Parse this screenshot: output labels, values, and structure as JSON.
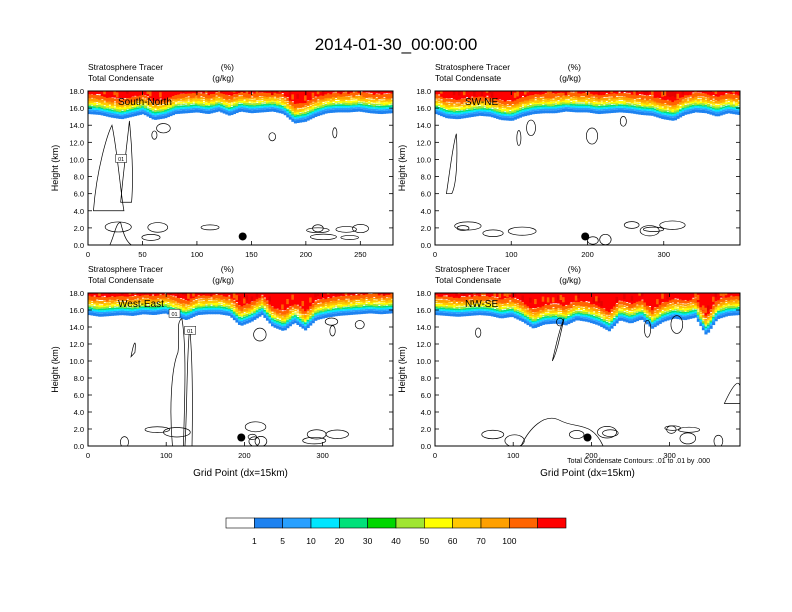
{
  "title": "2014-01-30_00:00:00",
  "colors": {
    "contour_line": "#000000",
    "levels": [
      "#ffffff",
      "#1e82f0",
      "#28a0ff",
      "#00e6ff",
      "#00e17a",
      "#00d700",
      "#a0e632",
      "#ffff00",
      "#ffc800",
      "#ffa000",
      "#ff6400",
      "#ff0000"
    ]
  },
  "chart_data": [
    {
      "type": "heatmap",
      "panel_label": "South-North",
      "left_title_1": "Stratosphere Tracer",
      "right_title_1": "(%)",
      "left_title_2": "Total Condensate",
      "right_title_2": "(g/kg)",
      "ylabel": "Height (km)",
      "xlabel": "",
      "xlim": [
        0,
        280
      ],
      "xticks": [
        "0",
        "50",
        "100",
        "150",
        "200",
        "250"
      ],
      "ylim": [
        0,
        18
      ],
      "yticks": [
        "0.0",
        "2.0",
        "4.0",
        "6.0",
        "8.0",
        "10.0",
        "12.0",
        "14.0",
        "16.0",
        "18.0"
      ],
      "tracer_top_height": [
        15.3,
        15.2,
        14.9,
        14.7,
        15.0,
        15.3,
        14.6,
        14.8,
        15.3,
        15.4,
        15.5,
        15.3,
        15.6,
        15.1,
        15.6,
        15.4,
        15.5,
        15.6,
        15.3,
        14.2,
        14.4,
        15.0,
        15.4,
        15.5,
        15.5,
        15.6,
        15.4,
        15.3,
        15.4
      ],
      "contour_labels": [
        "01"
      ],
      "marker": {
        "x": 142,
        "y": 1.0
      }
    },
    {
      "type": "heatmap",
      "panel_label": "SW-NE",
      "left_title_1": "Stratosphere Tracer",
      "right_title_1": "(%)",
      "left_title_2": "Total Condensate",
      "right_title_2": "(g/kg)",
      "ylabel": "Height (km)",
      "xlabel": "",
      "xlim": [
        0,
        400
      ],
      "xticks": [
        "0",
        "100",
        "200",
        "300"
      ],
      "ylim": [
        0,
        18
      ],
      "yticks": [
        "0.0",
        "2.0",
        "4.0",
        "6.0",
        "8.0",
        "10.0",
        "12.0",
        "14.0",
        "16.0",
        "18.0"
      ],
      "tracer_top_height": [
        15.3,
        14.8,
        14.7,
        14.9,
        15.1,
        15.0,
        14.6,
        14.5,
        15.0,
        15.3,
        15.4,
        15.4,
        15.6,
        15.5,
        15.5,
        15.3,
        15.4,
        15.5,
        15.4,
        15.2,
        15.1,
        14.7,
        14.5,
        15.2,
        15.5,
        15.4,
        15.0,
        15.4,
        15.2
      ],
      "contour_labels": [],
      "marker": {
        "x": 197,
        "y": 1.0
      }
    },
    {
      "type": "heatmap",
      "panel_label": "West-East",
      "left_title_1": "Stratosphere Tracer",
      "right_title_1": "(%)",
      "left_title_2": "Total Condensate",
      "right_title_2": "(g/kg)",
      "ylabel": "Height (km)",
      "xlabel": "Grid Point (dx=15km)",
      "xlim": [
        0,
        390
      ],
      "xticks": [
        "0",
        "100",
        "200",
        "300"
      ],
      "ylim": [
        0,
        18
      ],
      "yticks": [
        "0.0",
        "2.0",
        "4.0",
        "6.0",
        "8.0",
        "10.0",
        "12.0",
        "14.0",
        "16.0",
        "18.0"
      ],
      "tracer_top_height": [
        15.4,
        15.2,
        15.3,
        15.4,
        15.3,
        15.5,
        15.4,
        15.6,
        15.2,
        14.8,
        15.4,
        15.5,
        15.5,
        15.3,
        14.1,
        14.6,
        15.4,
        14.0,
        13.5,
        14.5,
        13.6,
        14.8,
        15.1,
        15.3,
        15.4,
        15.5,
        15.6,
        15.5,
        15.6
      ],
      "contour_labels": [
        "01",
        "01"
      ],
      "marker": {
        "x": 196,
        "y": 1.0
      }
    },
    {
      "type": "heatmap",
      "panel_label": "NW-SE",
      "left_title_1": "Stratosphere Tracer",
      "right_title_1": "(%)",
      "left_title_2": "Total Condensate",
      "right_title_2": "(g/kg)",
      "ylabel": "Height (km)",
      "xlabel": "Grid Point (dx=15km)",
      "xlim": [
        0,
        390
      ],
      "xticks": [
        "0",
        "100",
        "200",
        "300"
      ],
      "ylim": [
        0,
        18
      ],
      "yticks": [
        "0.0",
        "2.0",
        "4.0",
        "6.0",
        "8.0",
        "10.0",
        "12.0",
        "14.0",
        "16.0",
        "18.0"
      ],
      "tracer_top_height": [
        15.4,
        15.3,
        15.2,
        15.3,
        15.4,
        15.3,
        15.0,
        15.2,
        14.6,
        13.8,
        14.3,
        14.4,
        14.2,
        14.8,
        14.6,
        14.2,
        13.5,
        14.8,
        14.4,
        14.9,
        13.8,
        14.6,
        15.0,
        14.8,
        15.1,
        13.0,
        14.9,
        15.3,
        15.4
      ],
      "contour_labels": [],
      "marker": {
        "x": 195,
        "y": 1.0
      }
    }
  ],
  "contour_info": "Total Condensate Contours: .01 to .01 by .000",
  "colorbar": {
    "labels": [
      "1",
      "5",
      "10",
      "20",
      "30",
      "40",
      "50",
      "60",
      "70",
      "100"
    ]
  }
}
